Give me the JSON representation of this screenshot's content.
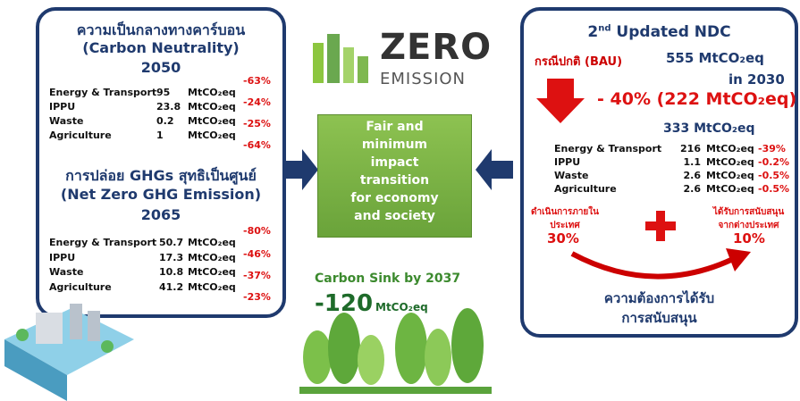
{
  "left": {
    "carbon_neutrality": {
      "title_th": "ความเป็นกลางทางคาร์บอน",
      "title_en": "(Carbon Neutrality)",
      "year": "2050",
      "unit": "MtCO₂eq",
      "rows": [
        {
          "label": "Energy & Transport",
          "value": 95
        },
        {
          "label": "IPPU",
          "value": 23.8
        },
        {
          "label": "Waste",
          "value": 0.2
        },
        {
          "label": "Agriculture",
          "value": 1
        }
      ],
      "percents": [
        "-63%",
        "-24%",
        "-25%",
        "-64%"
      ]
    },
    "net_zero": {
      "title_th": "การปล่อย GHGs สุทธิเป็นศูนย์",
      "title_en": "(Net Zero GHG Emission)",
      "year": "2065",
      "unit": "MtCO₂eq",
      "rows": [
        {
          "label": "Energy & Transport",
          "value": 50.7
        },
        {
          "label": "IPPU",
          "value": 17.3
        },
        {
          "label": "Waste",
          "value": 10.8
        },
        {
          "label": "Agriculture",
          "value": 41.2
        }
      ],
      "percents": [
        "-80%",
        "-46%",
        "-37%",
        "-23%"
      ]
    }
  },
  "center": {
    "logo_top": "ZERO",
    "logo_bottom": "EMISSION",
    "box_lines": [
      "Fair and",
      "minimum",
      "impact",
      "transition",
      "for economy",
      "and society"
    ],
    "sink_title": "Carbon Sink by 2037",
    "sink_value": "-120",
    "sink_unit": "MtCO₂eq"
  },
  "right": {
    "title_num": "2",
    "title_suffix": "nd",
    "title_rest": "Updated NDC",
    "bau_label": "กรณีปกติ (BAU)",
    "bau_value": "555 MtCO₂eq",
    "bau_year": "in 2030",
    "reduction": "- 40% (222 MtCO₂eq)",
    "target": "333 MtCO₂eq",
    "unit": "MtCO₂eq",
    "rows": [
      {
        "label": "Energy & Transport",
        "value": 216,
        "percent": "-39%"
      },
      {
        "label": "IPPU",
        "value": 1.1,
        "percent": "-0.2%"
      },
      {
        "label": "Waste",
        "value": 2.6,
        "percent": "-0.5%"
      },
      {
        "label": "Agriculture",
        "value": 2.6,
        "percent": "-0.5%"
      }
    ],
    "domestic_label": "ดำเนินการภายในประเทศ",
    "domestic_value": "30%",
    "support_label": "ได้รับการสนับสนุนจากต่างประเทศ",
    "support_value": "10%",
    "need_lines": [
      "ความต้องการได้รับ",
      "การสนับสนุน"
    ]
  }
}
